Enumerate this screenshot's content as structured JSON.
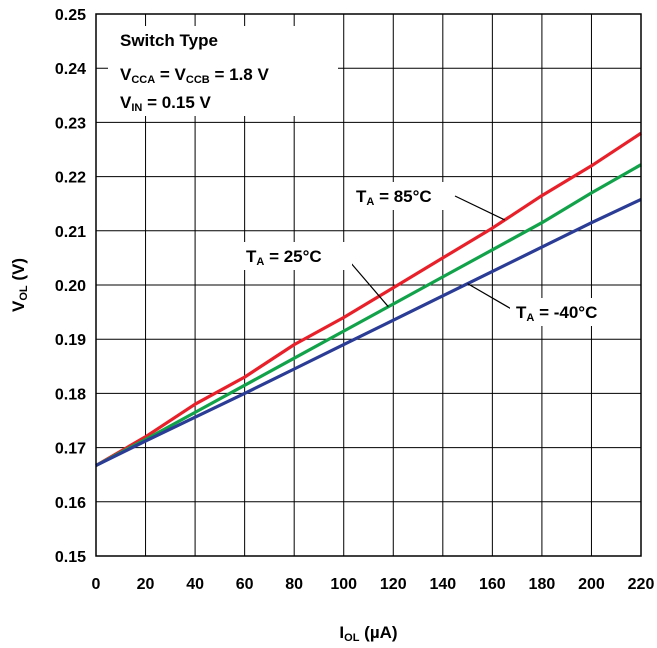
{
  "chart_data": {
    "type": "line",
    "xlabel": {
      "main": "I",
      "sub": "OL",
      "unit": " (µA)"
    },
    "ylabel": {
      "main": "V",
      "sub": "OL",
      "unit": " (V)"
    },
    "xlim": [
      0,
      220
    ],
    "ylim": [
      0.15,
      0.25
    ],
    "x_ticks": [
      "0",
      "20",
      "40",
      "60",
      "80",
      "100",
      "120",
      "140",
      "160",
      "180",
      "200",
      "220"
    ],
    "y_ticks": [
      "0.15",
      "0.16",
      "0.17",
      "0.18",
      "0.19",
      "0.20",
      "0.21",
      "0.22",
      "0.23",
      "0.24",
      "0.25"
    ],
    "grid": true,
    "legend_box": {
      "line1": "Switch Type",
      "line2": {
        "v1": "V",
        "s1": "CCA",
        "mid": " = V",
        "s2": "CCB",
        "end": " = 1.8 V"
      },
      "line3": {
        "v": "V",
        "s": "IN",
        "end": " = 0.15 V"
      }
    },
    "x": [
      0,
      20,
      40,
      60,
      80,
      100,
      120,
      140,
      160,
      180,
      200,
      220
    ],
    "series": [
      {
        "label_main": "T",
        "label_sub": "A",
        "label_end": " = 85°C",
        "color": "#e8202a",
        "values": [
          0.1667,
          0.172,
          0.178,
          0.183,
          0.189,
          0.194,
          0.1995,
          0.205,
          0.2105,
          0.2165,
          0.222,
          0.228
        ]
      },
      {
        "label_main": "T",
        "label_sub": "A",
        "label_end": " = 25°C",
        "color": "#11a24a",
        "values": [
          0.1667,
          0.1715,
          0.1765,
          0.1815,
          0.1865,
          0.1915,
          0.1965,
          0.2015,
          0.2065,
          0.2115,
          0.217,
          0.2222
        ]
      },
      {
        "label_main": "T",
        "label_sub": "A",
        "label_end": " = -40°C",
        "color": "#2a3c95",
        "values": [
          0.1667,
          0.1712,
          0.1756,
          0.18,
          0.1845,
          0.189,
          0.1935,
          0.198,
          0.2025,
          0.207,
          0.2115,
          0.2158
        ]
      }
    ]
  }
}
